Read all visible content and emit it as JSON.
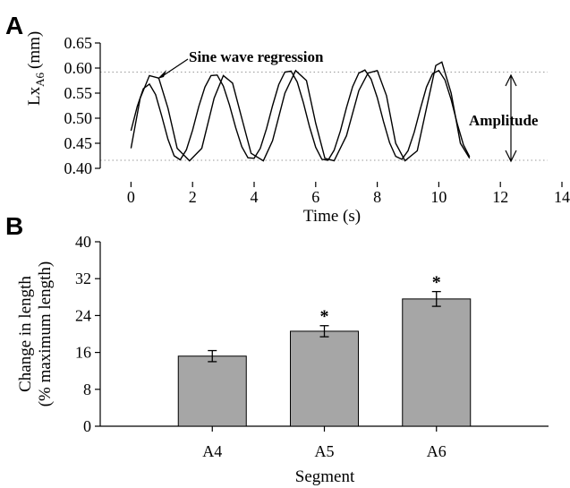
{
  "chart_data": [
    {
      "panel": "A",
      "type": "line",
      "title": "",
      "xlabel": "Time (s)",
      "ylabel": "Lx",
      "ylabel_subscript": "A6",
      "ylabel_unit": "(mm)",
      "xlim": [
        -1,
        14
      ],
      "ylim": [
        0.4,
        0.65
      ],
      "xticks": [
        0,
        2,
        4,
        6,
        8,
        10,
        12,
        14
      ],
      "yticks": [
        "0.40",
        "0.45",
        "0.50",
        "0.55",
        "0.60",
        "0.65"
      ],
      "reference_lines": [
        0.592,
        0.416
      ],
      "series": [
        {
          "x": [
            0,
            0.3,
            0.6,
            0.9,
            1.2,
            1.5,
            1.9,
            2.3,
            2.7,
            3.0,
            3.3,
            3.6,
            3.9,
            4.3,
            4.6,
            5.0,
            5.35,
            5.7,
            6.0,
            6.3,
            6.6,
            7.0,
            7.4,
            7.7,
            8.0,
            8.3,
            8.6,
            8.9,
            9.3,
            9.6,
            9.9,
            10.1,
            10.4,
            10.7,
            11.0
          ],
          "y": [
            0.44,
            0.54,
            0.585,
            0.58,
            0.52,
            0.44,
            0.415,
            0.44,
            0.54,
            0.585,
            0.57,
            0.5,
            0.43,
            0.415,
            0.455,
            0.55,
            0.595,
            0.575,
            0.49,
            0.42,
            0.415,
            0.465,
            0.555,
            0.59,
            0.595,
            0.545,
            0.45,
            0.415,
            0.435,
            0.52,
            0.605,
            0.612,
            0.55,
            0.45,
            0.42
          ]
        },
        {
          "x": [
            0,
            0.2,
            0.4,
            0.6,
            0.8,
            1.0,
            1.2,
            1.4,
            1.6,
            1.8,
            2.0,
            2.2,
            2.4,
            2.6,
            2.8,
            3.0,
            3.2,
            3.4,
            3.6,
            3.8,
            4.0,
            4.2,
            4.4,
            4.6,
            4.8,
            5.0,
            5.2,
            5.4,
            5.6,
            5.8,
            6.0,
            6.2,
            6.4,
            6.6,
            6.8,
            7.0,
            7.2,
            7.4,
            7.6,
            7.8,
            8.0,
            8.2,
            8.4,
            8.6,
            8.8,
            9.0,
            9.2,
            9.4,
            9.6,
            9.8,
            10.0,
            10.2,
            10.4,
            10.6,
            10.8,
            11.0
          ],
          "y": [
            0.475,
            0.523,
            0.559,
            0.568,
            0.547,
            0.504,
            0.458,
            0.425,
            0.417,
            0.437,
            0.476,
            0.523,
            0.562,
            0.585,
            0.586,
            0.564,
            0.526,
            0.481,
            0.443,
            0.421,
            0.42,
            0.44,
            0.479,
            0.525,
            0.567,
            0.592,
            0.594,
            0.572,
            0.531,
            0.483,
            0.442,
            0.418,
            0.416,
            0.436,
            0.474,
            0.521,
            0.563,
            0.59,
            0.596,
            0.578,
            0.541,
            0.494,
            0.451,
            0.424,
            0.418,
            0.435,
            0.472,
            0.519,
            0.562,
            0.589,
            0.595,
            0.576,
            0.537,
            0.489,
            0.447,
            0.423
          ]
        }
      ],
      "annotations": [
        "Sine wave regression",
        "Amplitude"
      ]
    },
    {
      "panel": "B",
      "type": "bar",
      "title": "",
      "xlabel": "Segment",
      "ylabel_line1": "Change in length",
      "ylabel_line2": "(% maximum length)",
      "ylim": [
        0,
        40
      ],
      "yticks": [
        "0",
        "8",
        "16",
        "24",
        "32",
        "40"
      ],
      "categories": [
        "A4",
        "A5",
        "A6"
      ],
      "values": [
        15.2,
        20.6,
        27.6
      ],
      "errors": [
        1.2,
        1.2,
        1.6
      ],
      "significance": [
        "",
        "*",
        "*"
      ]
    }
  ]
}
